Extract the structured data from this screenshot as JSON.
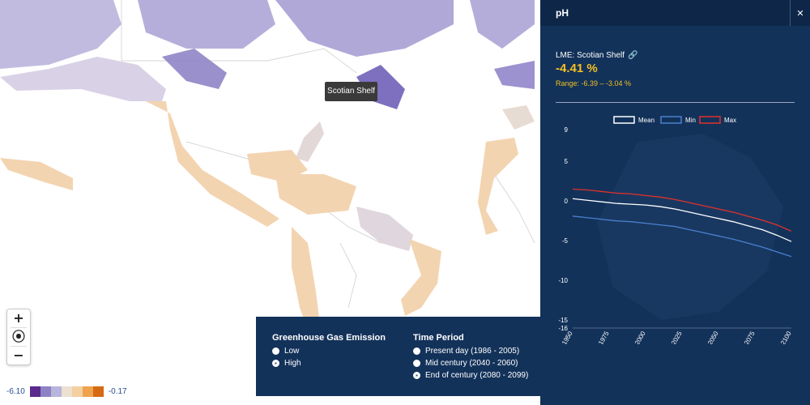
{
  "map": {
    "tooltip": "Scotian Shelf",
    "zoom": {
      "in_label": "+",
      "locate_label": "⦿",
      "out_label": "−"
    },
    "legend": {
      "min_label": "-6.10",
      "max_label": "-0.17",
      "colors": [
        "#5b2a8c",
        "#8d83c4",
        "#b8b4dc",
        "#ece0d0",
        "#f4cfa0",
        "#eea34c",
        "#d66a14"
      ]
    }
  },
  "controls": {
    "emission_title": "Greenhouse Gas Emission",
    "emission_options": [
      {
        "label": "Low",
        "selected": false
      },
      {
        "label": "High",
        "selected": true
      }
    ],
    "period_title": "Time Period",
    "period_options": [
      {
        "label": "Present day (1986 - 2005)",
        "selected": false
      },
      {
        "label": "Mid century (2040 - 2060)",
        "selected": false
      },
      {
        "label": "End of century (2080 - 2099)",
        "selected": true
      }
    ]
  },
  "panel": {
    "title": "pH",
    "close_label": "✕",
    "lme_label": "LME: Scotian Shelf",
    "value": "-4.41 %",
    "range": "Range: -6.39 – -3.04 %"
  },
  "chart_data": {
    "type": "line",
    "x": [
      1950,
      1960,
      1970,
      1980,
      1990,
      2000,
      2010,
      2020,
      2030,
      2040,
      2050,
      2060,
      2070,
      2080,
      2090,
      2100
    ],
    "series": [
      {
        "name": "Mean",
        "color": "#ffffff",
        "values": [
          0.3,
          0.1,
          -0.1,
          -0.3,
          -0.4,
          -0.5,
          -0.7,
          -1.0,
          -1.4,
          -1.8,
          -2.2,
          -2.6,
          -3.1,
          -3.6,
          -4.3,
          -5.1
        ]
      },
      {
        "name": "Min",
        "color": "#4a80d0",
        "values": [
          -1.9,
          -2.1,
          -2.3,
          -2.5,
          -2.6,
          -2.8,
          -3.0,
          -3.2,
          -3.6,
          -4.0,
          -4.4,
          -4.8,
          -5.3,
          -5.8,
          -6.4,
          -7.0
        ]
      },
      {
        "name": "Max",
        "color": "#e0312b",
        "values": [
          1.5,
          1.4,
          1.2,
          1.0,
          0.9,
          0.7,
          0.5,
          0.2,
          -0.2,
          -0.6,
          -1.0,
          -1.4,
          -1.9,
          -2.4,
          -3.0,
          -3.8
        ]
      }
    ],
    "yticks": [
      9,
      5,
      0,
      -5,
      -10,
      -15,
      -16
    ],
    "xticks": [
      1950,
      1975,
      2000,
      2025,
      2050,
      2075,
      2100
    ],
    "ylim": [
      -16,
      9
    ],
    "xlim": [
      1950,
      2100
    ],
    "legend_position": "top"
  }
}
